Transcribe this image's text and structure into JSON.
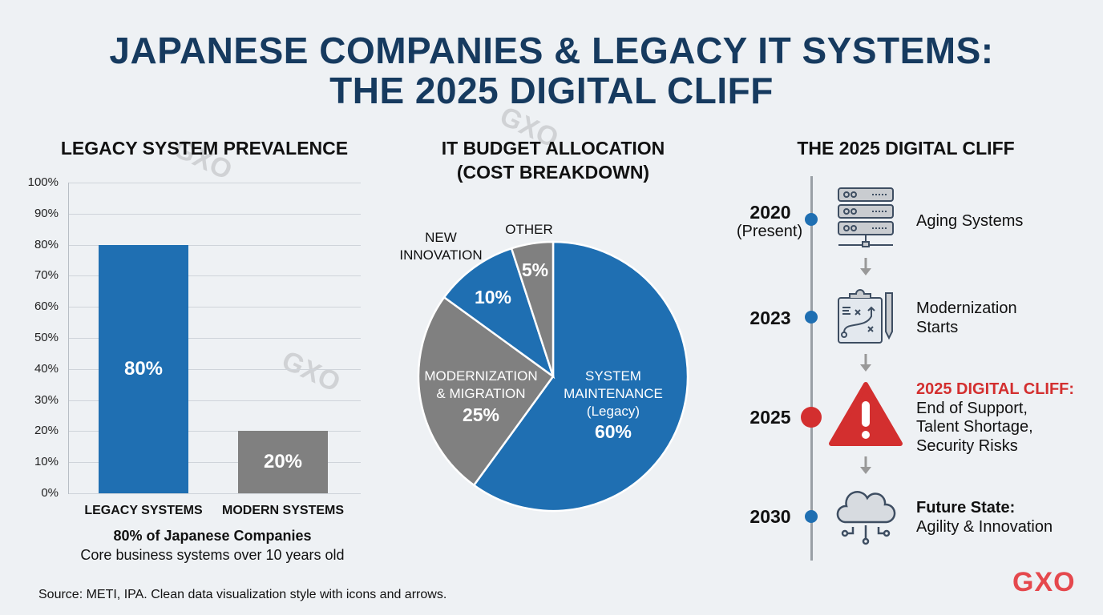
{
  "title": {
    "line1": "JAPANESE COMPANIES & LEGACY IT SYSTEMS:",
    "line2": "THE 2025 DIGITAL CLIFF"
  },
  "chart_data": [
    {
      "type": "bar",
      "title": "LEGACY SYSTEM PREVALENCE",
      "categories": [
        "LEGACY SYSTEMS",
        "MODERN SYSTEMS"
      ],
      "values": [
        80,
        20
      ],
      "data_labels": [
        "80%",
        "20%"
      ],
      "colors": [
        "#1f6fb2",
        "#808080"
      ],
      "ylim": [
        0,
        100
      ],
      "yticks": [
        "0%",
        "10%",
        "20%",
        "30%",
        "40%",
        "50%",
        "60%",
        "70%",
        "80%",
        "90%",
        "100%"
      ],
      "grid": true,
      "caption_bold": "80% of Japanese Companies",
      "caption": "Core business systems over 10 years old"
    },
    {
      "type": "pie",
      "title_line1": "IT BUDGET ALLOCATION",
      "title_line2": "(COST BREAKDOWN)",
      "slices": [
        {
          "label1": "SYSTEM",
          "label2": "MAINTENANCE",
          "label3": "(Legacy)",
          "value": 60,
          "value_label": "60%",
          "color": "#1f6fb2"
        },
        {
          "label1": "MODERNIZATION",
          "label2": "& MIGRATION",
          "value": 25,
          "value_label": "25%",
          "color": "#808080"
        },
        {
          "label1": "NEW",
          "label2": "INNOVATION",
          "value": 10,
          "value_label": "10%",
          "color": "#1f6fb2"
        },
        {
          "label1": "OTHER",
          "value": 5,
          "value_label": "5%",
          "color": "#808080"
        }
      ]
    }
  ],
  "timeline": {
    "title": "THE 2025 DIGITAL CLIFF",
    "items": [
      {
        "year": "2020",
        "sub": "(Present)",
        "icon": "server-rack-icon",
        "text1": "Aging Systems"
      },
      {
        "year": "2023",
        "icon": "clipboard-plan-icon",
        "text1": "Modernization",
        "text2": "Starts"
      },
      {
        "year": "2025",
        "icon": "warning-triangle-icon",
        "heading": "2025 DIGITAL CLIFF:",
        "text1": "End of Support,",
        "text2": "Talent Shortage,",
        "text3": "Security Risks"
      },
      {
        "year": "2030",
        "icon": "cloud-network-icon",
        "heading": "Future State:",
        "text1": "Agility & Innovation"
      }
    ],
    "accent": "#1f6fb2",
    "alert": "#d32f2f"
  },
  "source": "Source: METI, IPA. Clean data visualization style with icons and arrows.",
  "logo": "GXO",
  "watermark": "GXO"
}
